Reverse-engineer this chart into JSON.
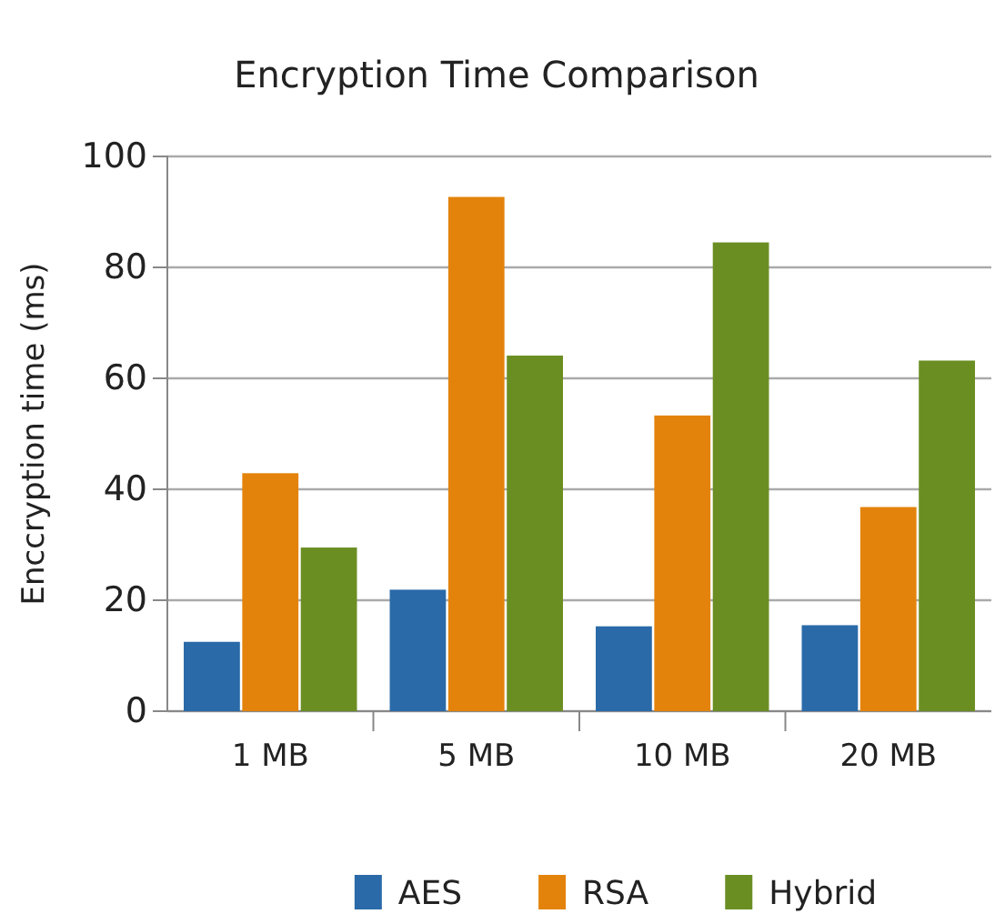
{
  "chart_data": {
    "type": "bar",
    "title": "Encryption Time Comparison",
    "ylabel": "Enccryption time (ms)",
    "categories": [
      "1 MB",
      "5 MB",
      "10 MB",
      "20 MB"
    ],
    "series": [
      {
        "name": "AES",
        "color": "#2a6aa8",
        "values": [
          12.5,
          21.9,
          15.3,
          15.5
        ]
      },
      {
        "name": "RSA",
        "color": "#e3830b",
        "values": [
          42.9,
          92.7,
          53.3,
          36.8
        ]
      },
      {
        "name": "Hybrid",
        "color": "#6b8e23",
        "values": [
          29.5,
          64.1,
          84.5,
          63.2
        ]
      }
    ],
    "ylim": [
      0,
      100
    ],
    "yticks": [
      0,
      20,
      40,
      60,
      80,
      100
    ],
    "grid": "y",
    "legend": "bottom"
  }
}
